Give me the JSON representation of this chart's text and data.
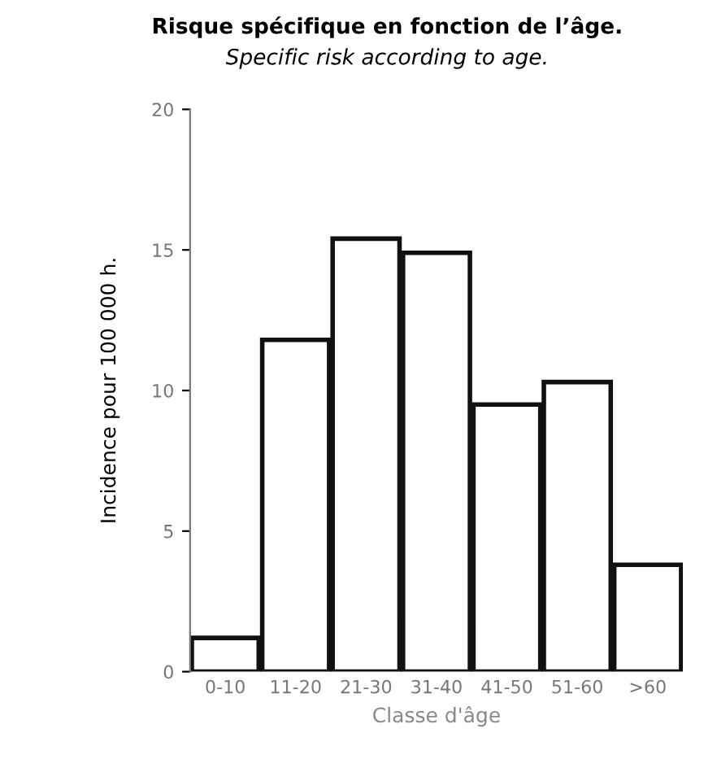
{
  "chart_data": {
    "type": "bar",
    "title": "Risque spécifique en fonction de l’âge.",
    "subtitle": "Specific risk according to age.",
    "xlabel": "Classe d'âge",
    "ylabel": "Incidence pour 100 000 h.",
    "categories": [
      "0-10",
      "11-20",
      "21-30",
      "31-40",
      "41-50",
      "51-60",
      ">60"
    ],
    "values": [
      1.2,
      11.8,
      15.4,
      14.9,
      9.5,
      10.3,
      3.8
    ],
    "color": "#ffffff",
    "ylim": [
      0,
      20
    ],
    "yticks": [
      0,
      5,
      10,
      15,
      20
    ],
    "grid": false,
    "legend": false
  }
}
